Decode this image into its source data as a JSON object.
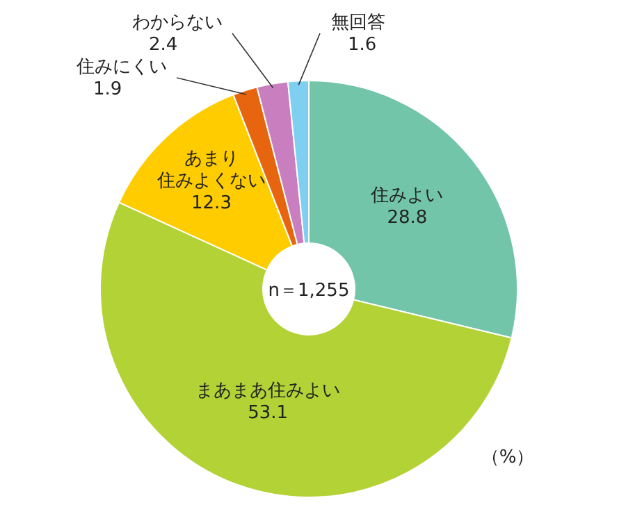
{
  "chart_data": {
    "type": "donut",
    "categories": [
      "住みよい",
      "まあまあ住みよい",
      "あまり住みよくない",
      "住みにくい",
      "わからない",
      "無回答"
    ],
    "values": [
      28.8,
      53.1,
      12.3,
      1.9,
      2.4,
      1.6
    ],
    "colors": [
      "#72c5a8",
      "#b2d235",
      "#ffcc00",
      "#e8650f",
      "#c97fbf",
      "#7fd0f0"
    ],
    "data_labels": true,
    "annotations": [
      "n＝1,255",
      "（%）"
    ]
  }
}
